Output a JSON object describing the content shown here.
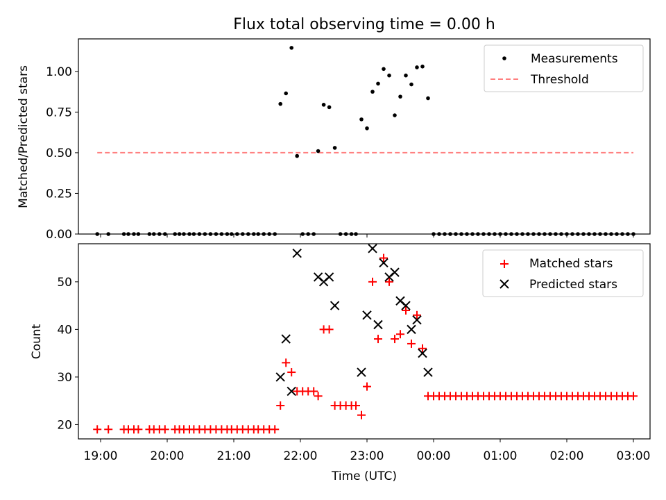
{
  "chart_data": [
    {
      "type": "scatter",
      "title": "Flux total observing time = 0.00 h",
      "xlabel": "",
      "ylabel": "Matched/Predicted stars",
      "ylim": [
        0,
        1.2
      ],
      "yticks": [
        "0.00",
        "0.25",
        "0.50",
        "0.75",
        "1.00"
      ],
      "yticks_values": [
        0,
        0.25,
        0.5,
        0.75,
        1.0
      ],
      "legend": {
        "placement": "top-right",
        "entries": [
          "Measurements",
          "Threshold"
        ]
      },
      "series": [
        {
          "name": "Measurements",
          "style": "dot",
          "color": "#000000",
          "points": [
            [
              "18:57",
              0
            ],
            [
              "19:07",
              0
            ],
            [
              "19:21",
              0
            ],
            [
              "19:25",
              0
            ],
            [
              "19:30",
              0
            ],
            [
              "19:34",
              0
            ],
            [
              "19:44",
              0
            ],
            [
              "19:48",
              0
            ],
            [
              "19:53",
              0
            ],
            [
              "19:58",
              0
            ],
            [
              "20:07",
              0
            ],
            [
              "20:11",
              0
            ],
            [
              "20:15",
              0
            ],
            [
              "20:20",
              0
            ],
            [
              "20:24",
              0
            ],
            [
              "20:29",
              0
            ],
            [
              "20:34",
              0
            ],
            [
              "20:39",
              0
            ],
            [
              "20:44",
              0
            ],
            [
              "20:49",
              0
            ],
            [
              "20:54",
              0
            ],
            [
              "20:58",
              0
            ],
            [
              "21:03",
              0
            ],
            [
              "21:08",
              0
            ],
            [
              "21:13",
              0
            ],
            [
              "21:18",
              0
            ],
            [
              "21:22",
              0
            ],
            [
              "21:27",
              0
            ],
            [
              "21:32",
              0
            ],
            [
              "21:37",
              0
            ],
            [
              "21:42",
              0.8
            ],
            [
              "21:47",
              0.865
            ],
            [
              "21:52",
              1.145
            ],
            [
              "21:57",
              0.48
            ],
            [
              "22:02",
              0
            ],
            [
              "22:07",
              0
            ],
            [
              "22:12",
              0
            ],
            [
              "22:16",
              0.51
            ],
            [
              "22:21",
              0.795
            ],
            [
              "22:26",
              0.78
            ],
            [
              "22:31",
              0.53
            ],
            [
              "22:36",
              0
            ],
            [
              "22:41",
              0
            ],
            [
              "22:46",
              0
            ],
            [
              "22:50",
              0
            ],
            [
              "22:55",
              0.705
            ],
            [
              "23:00",
              0.65
            ],
            [
              "23:05",
              0.875
            ],
            [
              "23:10",
              0.925
            ],
            [
              "23:15",
              1.015
            ],
            [
              "23:20",
              0.975
            ],
            [
              "23:25",
              0.73
            ],
            [
              "23:30",
              0.845
            ],
            [
              "23:35",
              0.975
            ],
            [
              "23:40",
              0.92
            ],
            [
              "23:45",
              1.025
            ],
            [
              "23:50",
              1.03
            ],
            [
              "23:55",
              0.835
            ],
            [
              "00:00",
              0
            ],
            [
              "00:05",
              0
            ],
            [
              "00:10",
              0
            ],
            [
              "00:15",
              0
            ],
            [
              "00:20",
              0
            ],
            [
              "00:25",
              0
            ],
            [
              "00:30",
              0
            ],
            [
              "00:35",
              0
            ],
            [
              "00:40",
              0
            ],
            [
              "00:45",
              0
            ],
            [
              "00:50",
              0
            ],
            [
              "00:55",
              0
            ],
            [
              "01:00",
              0
            ],
            [
              "01:05",
              0
            ],
            [
              "01:10",
              0
            ],
            [
              "01:15",
              0
            ],
            [
              "01:20",
              0
            ],
            [
              "01:25",
              0
            ],
            [
              "01:30",
              0
            ],
            [
              "01:35",
              0
            ],
            [
              "01:40",
              0
            ],
            [
              "01:45",
              0
            ],
            [
              "01:50",
              0
            ],
            [
              "01:55",
              0
            ],
            [
              "02:00",
              0
            ],
            [
              "02:05",
              0
            ],
            [
              "02:10",
              0
            ],
            [
              "02:15",
              0
            ],
            [
              "02:20",
              0
            ],
            [
              "02:25",
              0
            ],
            [
              "02:30",
              0
            ],
            [
              "02:35",
              0
            ],
            [
              "02:40",
              0
            ],
            [
              "02:45",
              0
            ],
            [
              "02:50",
              0
            ],
            [
              "02:55",
              0
            ],
            [
              "03:00",
              0
            ]
          ]
        },
        {
          "name": "Threshold",
          "style": "dashed-line",
          "color": "#ff7f7f",
          "points": [
            [
              "18:57",
              0.5
            ],
            [
              "03:00",
              0.5
            ]
          ]
        }
      ]
    },
    {
      "type": "scatter",
      "title": "",
      "xlabel": "Time (UTC)",
      "ylabel": "Count",
      "ylim": [
        17,
        58
      ],
      "yticks": [
        "20",
        "30",
        "40",
        "50"
      ],
      "yticks_values": [
        20,
        30,
        40,
        50
      ],
      "xlim": [
        "18:40",
        "03:15"
      ],
      "xticks": [
        "19:00",
        "20:00",
        "21:00",
        "22:00",
        "23:00",
        "00:00",
        "01:00",
        "02:00",
        "03:00"
      ],
      "legend": {
        "placement": "top-right",
        "entries": [
          "Matched stars",
          "Predicted stars"
        ]
      },
      "series": [
        {
          "name": "Matched stars",
          "style": "plus",
          "color": "#ff0000",
          "points": [
            [
              "18:57",
              19
            ],
            [
              "19:07",
              19
            ],
            [
              "19:21",
              19
            ],
            [
              "19:25",
              19
            ],
            [
              "19:30",
              19
            ],
            [
              "19:34",
              19
            ],
            [
              "19:44",
              19
            ],
            [
              "19:48",
              19
            ],
            [
              "19:53",
              19
            ],
            [
              "19:58",
              19
            ],
            [
              "20:07",
              19
            ],
            [
              "20:11",
              19
            ],
            [
              "20:15",
              19
            ],
            [
              "20:20",
              19
            ],
            [
              "20:24",
              19
            ],
            [
              "20:29",
              19
            ],
            [
              "20:34",
              19
            ],
            [
              "20:39",
              19
            ],
            [
              "20:44",
              19
            ],
            [
              "20:49",
              19
            ],
            [
              "20:54",
              19
            ],
            [
              "20:58",
              19
            ],
            [
              "21:03",
              19
            ],
            [
              "21:08",
              19
            ],
            [
              "21:13",
              19
            ],
            [
              "21:18",
              19
            ],
            [
              "21:22",
              19
            ],
            [
              "21:27",
              19
            ],
            [
              "21:32",
              19
            ],
            [
              "21:37",
              19
            ],
            [
              "21:42",
              24
            ],
            [
              "21:47",
              33
            ],
            [
              "21:52",
              31
            ],
            [
              "21:57",
              27
            ],
            [
              "22:02",
              27
            ],
            [
              "22:07",
              27
            ],
            [
              "22:12",
              27
            ],
            [
              "22:16",
              26
            ],
            [
              "22:21",
              40
            ],
            [
              "22:26",
              40
            ],
            [
              "22:31",
              24
            ],
            [
              "22:36",
              24
            ],
            [
              "22:41",
              24
            ],
            [
              "22:46",
              24
            ],
            [
              "22:50",
              24
            ],
            [
              "22:55",
              22
            ],
            [
              "23:00",
              28
            ],
            [
              "23:05",
              50
            ],
            [
              "23:10",
              38
            ],
            [
              "23:15",
              55
            ],
            [
              "23:20",
              50
            ],
            [
              "23:25",
              38
            ],
            [
              "23:30",
              39
            ],
            [
              "23:35",
              44
            ],
            [
              "23:40",
              37
            ],
            [
              "23:45",
              43
            ],
            [
              "23:50",
              36
            ],
            [
              "23:55",
              26
            ],
            [
              "00:00",
              26
            ],
            [
              "00:05",
              26
            ],
            [
              "00:10",
              26
            ],
            [
              "00:15",
              26
            ],
            [
              "00:20",
              26
            ],
            [
              "00:25",
              26
            ],
            [
              "00:30",
              26
            ],
            [
              "00:35",
              26
            ],
            [
              "00:40",
              26
            ],
            [
              "00:45",
              26
            ],
            [
              "00:50",
              26
            ],
            [
              "00:55",
              26
            ],
            [
              "01:00",
              26
            ],
            [
              "01:05",
              26
            ],
            [
              "01:10",
              26
            ],
            [
              "01:15",
              26
            ],
            [
              "01:20",
              26
            ],
            [
              "01:25",
              26
            ],
            [
              "01:30",
              26
            ],
            [
              "01:35",
              26
            ],
            [
              "01:40",
              26
            ],
            [
              "01:45",
              26
            ],
            [
              "01:50",
              26
            ],
            [
              "01:55",
              26
            ],
            [
              "02:00",
              26
            ],
            [
              "02:05",
              26
            ],
            [
              "02:10",
              26
            ],
            [
              "02:15",
              26
            ],
            [
              "02:20",
              26
            ],
            [
              "02:25",
              26
            ],
            [
              "02:30",
              26
            ],
            [
              "02:35",
              26
            ],
            [
              "02:40",
              26
            ],
            [
              "02:45",
              26
            ],
            [
              "02:50",
              26
            ],
            [
              "02:55",
              26
            ],
            [
              "03:00",
              26
            ]
          ]
        },
        {
          "name": "Predicted stars",
          "style": "x",
          "color": "#000000",
          "points": [
            [
              "21:42",
              30
            ],
            [
              "21:47",
              38
            ],
            [
              "21:52",
              27
            ],
            [
              "21:57",
              56
            ],
            [
              "22:16",
              51
            ],
            [
              "22:21",
              50
            ],
            [
              "22:26",
              51
            ],
            [
              "22:31",
              45
            ],
            [
              "22:55",
              31
            ],
            [
              "23:00",
              43
            ],
            [
              "23:05",
              57
            ],
            [
              "23:10",
              41
            ],
            [
              "23:15",
              54
            ],
            [
              "23:20",
              51
            ],
            [
              "23:25",
              52
            ],
            [
              "23:30",
              46
            ],
            [
              "23:35",
              45
            ],
            [
              "23:40",
              40
            ],
            [
              "23:45",
              42
            ],
            [
              "23:50",
              35
            ],
            [
              "23:55",
              31
            ]
          ]
        }
      ]
    }
  ]
}
